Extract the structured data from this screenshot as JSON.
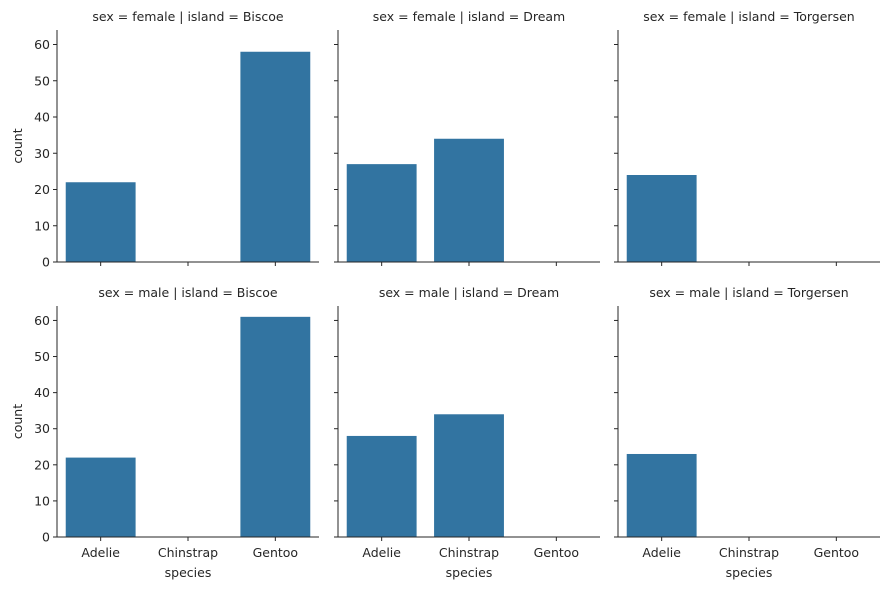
{
  "figure": {
    "row_var": "sex",
    "col_var": "island"
  },
  "chart_data": [
    {
      "type": "bar",
      "title": "sex = female | island = Biscoe",
      "categories": [
        "Adelie",
        "Chinstrap",
        "Gentoo"
      ],
      "values": [
        22,
        0,
        58
      ],
      "ylabel": "count",
      "xlabel": "",
      "ylim": [
        0,
        64
      ],
      "yticks": [
        0,
        10,
        20,
        30,
        40,
        50,
        60
      ],
      "color": "#3274a1"
    },
    {
      "type": "bar",
      "title": "sex = female | island = Dream",
      "categories": [
        "Adelie",
        "Chinstrap",
        "Gentoo"
      ],
      "values": [
        27,
        34,
        0
      ],
      "ylabel": "",
      "xlabel": "",
      "ylim": [
        0,
        64
      ],
      "yticks": [
        0,
        10,
        20,
        30,
        40,
        50,
        60
      ],
      "color": "#3274a1"
    },
    {
      "type": "bar",
      "title": "sex = female | island = Torgersen",
      "categories": [
        "Adelie",
        "Chinstrap",
        "Gentoo"
      ],
      "values": [
        24,
        0,
        0
      ],
      "ylabel": "",
      "xlabel": "",
      "ylim": [
        0,
        64
      ],
      "yticks": [
        0,
        10,
        20,
        30,
        40,
        50,
        60
      ],
      "color": "#3274a1"
    },
    {
      "type": "bar",
      "title": "sex = male | island = Biscoe",
      "categories": [
        "Adelie",
        "Chinstrap",
        "Gentoo"
      ],
      "values": [
        22,
        0,
        61
      ],
      "ylabel": "count",
      "xlabel": "species",
      "ylim": [
        0,
        64
      ],
      "yticks": [
        0,
        10,
        20,
        30,
        40,
        50,
        60
      ],
      "color": "#3274a1"
    },
    {
      "type": "bar",
      "title": "sex = male | island = Dream",
      "categories": [
        "Adelie",
        "Chinstrap",
        "Gentoo"
      ],
      "values": [
        28,
        34,
        0
      ],
      "ylabel": "",
      "xlabel": "species",
      "ylim": [
        0,
        64
      ],
      "yticks": [
        0,
        10,
        20,
        30,
        40,
        50,
        60
      ],
      "color": "#3274a1"
    },
    {
      "type": "bar",
      "title": "sex = male | island = Torgersen",
      "categories": [
        "Adelie",
        "Chinstrap",
        "Gentoo"
      ],
      "values": [
        23,
        0,
        0
      ],
      "ylabel": "",
      "xlabel": "species",
      "ylim": [
        0,
        64
      ],
      "yticks": [
        0,
        10,
        20,
        30,
        40,
        50,
        60
      ],
      "color": "#3274a1"
    }
  ]
}
